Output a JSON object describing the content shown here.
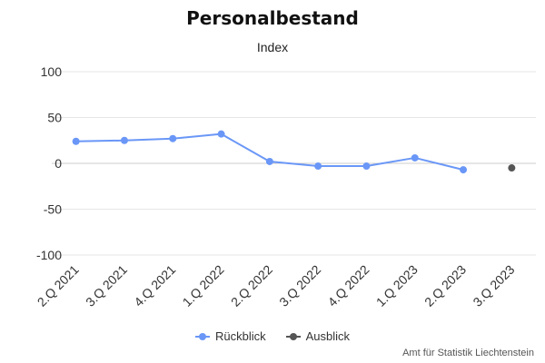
{
  "chart_data": {
    "type": "line",
    "title": "Personalbestand",
    "subtitle": "Index",
    "categories": [
      "2.Q 2021",
      "3.Q 2021",
      "4.Q 2021",
      "1.Q 2022",
      "2.Q 2022",
      "3.Q 2022",
      "4.Q 2022",
      "1.Q 2023",
      "2.Q 2023",
      "3.Q 2023"
    ],
    "series": [
      {
        "name": "Rückblick",
        "color": "#6a97f7",
        "values": [
          24,
          25,
          27,
          32,
          2,
          -3,
          -3,
          6,
          -7,
          null
        ]
      },
      {
        "name": "Ausblick",
        "color": "#555555",
        "values": [
          null,
          null,
          null,
          null,
          null,
          null,
          null,
          null,
          null,
          -5
        ]
      }
    ],
    "ylim": [
      -100,
      100
    ],
    "yticks": [
      100,
      50,
      0,
      -50,
      -100
    ],
    "ytick_labels": [
      "100",
      "50",
      "0",
      "-50",
      "-100"
    ],
    "grid": true,
    "legend_position": "bottom-center",
    "xlabel": "",
    "ylabel": ""
  },
  "credits": "Amt für Statistik Liechtenstein"
}
